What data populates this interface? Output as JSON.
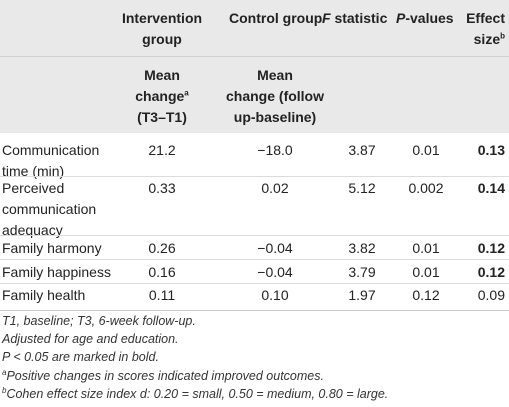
{
  "header": {
    "intervention_line1": "Intervention",
    "intervention_line2": "group",
    "control": "Control group",
    "f_stat_letter": "F",
    "f_stat_rest": " statistic",
    "p_letter": "P",
    "p_rest": "-values",
    "effect_line1": "Effect",
    "effect_line2": "size",
    "effect_sup": "b",
    "sub_int_line1": "Mean",
    "sub_int_line2": "change",
    "sub_int_sup": "a",
    "sub_int_line3": "(T3–T1)",
    "sub_ctl_line1": "Mean",
    "sub_ctl_line2": "change (follow",
    "sub_ctl_line3": "up-baseline)"
  },
  "rows": [
    {
      "label_lines": [
        "Communication",
        "time (min)"
      ],
      "intervention": "21.2",
      "control": "−18.0",
      "f": "3.87",
      "p": "0.01",
      "effect": "0.13",
      "bold": true
    },
    {
      "label_lines": [
        "Perceived",
        "communication",
        "adequacy"
      ],
      "intervention": "0.33",
      "control": "0.02",
      "f": "5.12",
      "p": "0.002",
      "effect": "0.14",
      "bold": true
    },
    {
      "label_lines": [
        "Family harmony"
      ],
      "intervention": "0.26",
      "control": "−0.04",
      "f": "3.82",
      "p": "0.01",
      "effect": "0.12",
      "bold": true
    },
    {
      "label_lines": [
        "Family happiness"
      ],
      "intervention": "0.16",
      "control": "−0.04",
      "f": "3.79",
      "p": "0.01",
      "effect": "0.12",
      "bold": true
    },
    {
      "label_lines": [
        "Family health"
      ],
      "intervention": "0.11",
      "control": "0.10",
      "f": "1.97",
      "p": "0.12",
      "effect": "0.09",
      "bold": false
    }
  ],
  "footnotes": {
    "line1": "T1, baseline; T3, 6-week follow-up.",
    "line2": "Adjusted for age and education.",
    "line3": "P < 0.05 are marked in bold.",
    "line4_sup": "a",
    "line4": "Positive changes in scores indicated improved outcomes.",
    "line5_sup": "b",
    "line5": "Cohen effect size index d: 0.20 = small, 0.50 = medium, 0.80 = large."
  }
}
